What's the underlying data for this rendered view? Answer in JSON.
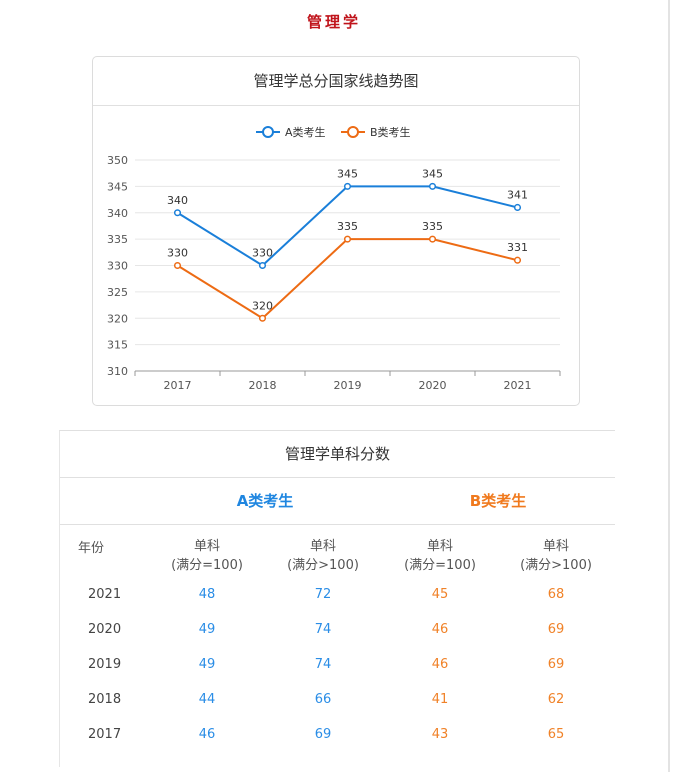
{
  "page_title": "管理学",
  "chart_card": {
    "title": "管理学总分国家线趋势图"
  },
  "chart_data": {
    "type": "line",
    "title": "管理学总分国家线趋势图",
    "categories": [
      "2017",
      "2018",
      "2019",
      "2020",
      "2021"
    ],
    "series": [
      {
        "name": "A类考生",
        "values": [
          340,
          330,
          345,
          345,
          341
        ],
        "color": "#1a7fd9"
      },
      {
        "name": "B类考生",
        "values": [
          330,
          320,
          335,
          335,
          331
        ],
        "color": "#ed6b14"
      }
    ],
    "yticks": [
      310,
      315,
      320,
      325,
      330,
      335,
      340,
      345,
      350
    ],
    "ylim": [
      310,
      350
    ],
    "xlabel": "",
    "ylabel": "",
    "grid": true,
    "legend": "top-center",
    "data_labels": true
  },
  "table": {
    "title": "管理学单科分数",
    "group_a": "A类考生",
    "group_b": "B类考生",
    "headers": {
      "year": "年份",
      "col1": [
        "单科",
        "(满分=100)"
      ],
      "col2": [
        "单科",
        "(满分>100)"
      ],
      "col3": [
        "单科",
        "(满分=100)"
      ],
      "col4": [
        "单科",
        "(满分>100)"
      ]
    },
    "rows": [
      {
        "year": "2021",
        "a1": "48",
        "a2": "72",
        "b1": "45",
        "b2": "68"
      },
      {
        "year": "2020",
        "a1": "49",
        "a2": "74",
        "b1": "46",
        "b2": "69"
      },
      {
        "year": "2019",
        "a1": "49",
        "a2": "74",
        "b1": "46",
        "b2": "69"
      },
      {
        "year": "2018",
        "a1": "44",
        "a2": "66",
        "b1": "41",
        "b2": "62"
      },
      {
        "year": "2017",
        "a1": "46",
        "a2": "69",
        "b1": "43",
        "b2": "65"
      }
    ],
    "colors": {
      "a": "#2a8de6",
      "b": "#f08228"
    }
  }
}
